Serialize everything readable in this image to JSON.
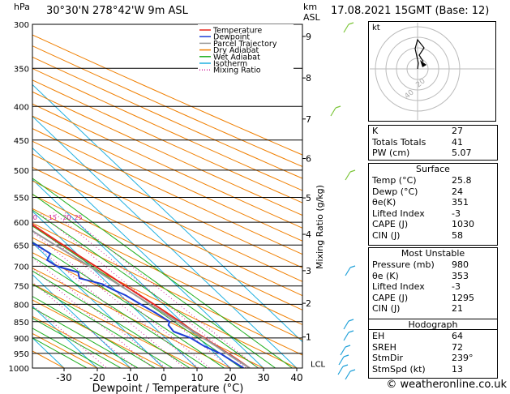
{
  "header": {
    "pressure_unit": "hPa",
    "location": "30°30'N  278°42'W  9m  ASL",
    "km_unit": "km",
    "asl_label": "ASL",
    "datetime": "17.08.2021  15GMT  (Base: 12)"
  },
  "legend": {
    "items": [
      {
        "label": "Temperature",
        "color": "#e8291e",
        "style": "solid"
      },
      {
        "label": "Dewpoint",
        "color": "#1f3fd6",
        "style": "solid"
      },
      {
        "label": "Parcel Trajectory",
        "color": "#999999",
        "style": "solid"
      },
      {
        "label": "Dry Adiabat",
        "color": "#f07f00",
        "style": "solid"
      },
      {
        "label": "Wet Adiabat",
        "color": "#20b020",
        "style": "solid"
      },
      {
        "label": "Isotherm",
        "color": "#20b0e0",
        "style": "solid"
      },
      {
        "label": "Mixing Ratio",
        "color": "#d0209a",
        "style": "dotted"
      }
    ]
  },
  "chart_data": {
    "type": "line",
    "subtype": "skew-t log-p",
    "xlabel": "Dewpoint / Temperature (°C)",
    "xticks": [
      -30,
      -20,
      -10,
      0,
      10,
      20,
      30,
      40
    ],
    "pressure_levels": [
      300,
      350,
      400,
      450,
      500,
      550,
      600,
      650,
      700,
      750,
      800,
      850,
      900,
      950,
      1000
    ],
    "ylabel_right": "Mixing Ratio (g/kg)",
    "height_km_ticks": [
      {
        "label": "9",
        "p": 313
      },
      {
        "label": "8",
        "p": 362
      },
      {
        "label": "7",
        "p": 418
      },
      {
        "label": "6",
        "p": 480
      },
      {
        "label": "5",
        "p": 551
      },
      {
        "label": "4",
        "p": 626
      },
      {
        "label": "3",
        "p": 711
      },
      {
        "label": "2",
        "p": 797
      },
      {
        "label": "1",
        "p": 897
      }
    ],
    "lcl_label": "LCL",
    "mixing_ratio_labels": [
      "1",
      "2",
      "3",
      "4",
      "6",
      "8",
      "10",
      "15",
      "20",
      "25"
    ],
    "series": [
      {
        "name": "Temperature",
        "color": "#e8291e",
        "points": [
          [
            1000,
            25.8
          ],
          [
            975,
            25.0
          ],
          [
            950,
            24.0
          ],
          [
            925,
            22.8
          ],
          [
            900,
            21.8
          ],
          [
            875,
            20.4
          ],
          [
            850,
            19.6
          ],
          [
            825,
            18.4
          ],
          [
            800,
            17.2
          ],
          [
            775,
            15.8
          ],
          [
            750,
            14.4
          ],
          [
            725,
            13.0
          ],
          [
            700,
            11.6
          ],
          [
            675,
            10.0
          ],
          [
            650,
            8.6
          ],
          [
            625,
            7.0
          ],
          [
            600,
            5.4
          ],
          [
            575,
            3.6
          ],
          [
            550,
            1.6
          ],
          [
            525,
            -0.6
          ],
          [
            500,
            -3.0
          ],
          [
            475,
            -5.6
          ],
          [
            450,
            -8.2
          ],
          [
            425,
            -11.2
          ],
          [
            400,
            -14.4
          ],
          [
            375,
            -17.8
          ],
          [
            350,
            -21.4
          ],
          [
            325,
            -25.6
          ],
          [
            300,
            -30.0
          ]
        ]
      },
      {
        "name": "Dewpoint",
        "color": "#1f3fd6",
        "points": [
          [
            1000,
            24.0
          ],
          [
            975,
            22.8
          ],
          [
            950,
            21.6
          ],
          [
            925,
            19.0
          ],
          [
            900,
            17.6
          ],
          [
            880,
            14.5
          ],
          [
            860,
            15.0
          ],
          [
            850,
            16.4
          ],
          [
            825,
            15.0
          ],
          [
            800,
            13.2
          ],
          [
            775,
            11.5
          ],
          [
            760,
            9.5
          ],
          [
            745,
            8.0
          ],
          [
            730,
            3.0
          ],
          [
            715,
            4.5
          ],
          [
            700,
            0.0
          ],
          [
            685,
            -1.0
          ],
          [
            670,
            2.0
          ],
          [
            650,
            0.6
          ],
          [
            625,
            -2.0
          ],
          [
            600,
            -4.0
          ],
          [
            575,
            -6.0
          ],
          [
            560,
            -9.0
          ],
          [
            545,
            -22.0
          ],
          [
            540,
            -12.0
          ],
          [
            530,
            -11.0
          ],
          [
            520,
            -16.0
          ],
          [
            510,
            -12.0
          ],
          [
            500,
            -16.0
          ],
          [
            485,
            -14.0
          ],
          [
            470,
            -18.0
          ],
          [
            455,
            -19.0
          ],
          [
            440,
            -18.0
          ],
          [
            420,
            -20.0
          ],
          [
            400,
            -30.0
          ],
          [
            385,
            -30.0
          ],
          [
            370,
            -40.0
          ],
          [
            360,
            -40.0
          ],
          [
            350,
            -38.0
          ],
          [
            340,
            -44.0
          ],
          [
            325,
            -44.0
          ],
          [
            310,
            -46.0
          ],
          [
            300,
            -50.0
          ]
        ]
      },
      {
        "name": "Parcel Trajectory",
        "color": "#999999",
        "points": [
          [
            1000,
            25.8
          ],
          [
            960,
            24.0
          ],
          [
            925,
            22.6
          ],
          [
            900,
            21.4
          ],
          [
            850,
            18.8
          ],
          [
            800,
            16.0
          ],
          [
            750,
            13.0
          ],
          [
            700,
            9.8
          ],
          [
            650,
            6.2
          ],
          [
            600,
            2.4
          ],
          [
            550,
            -2.0
          ],
          [
            500,
            -7.2
          ],
          [
            450,
            -13.0
          ],
          [
            400,
            -20.0
          ],
          [
            350,
            -28.0
          ],
          [
            300,
            -37.0
          ]
        ]
      }
    ]
  },
  "hodograph": {
    "label": "kt",
    "ring_labels": [
      "20",
      "40"
    ]
  },
  "indices": {
    "k_label": "K",
    "k_value": "27",
    "tt_label": "Totals Totals",
    "tt_value": "41",
    "pw_label": "PW (cm)",
    "pw_value": "5.07"
  },
  "surface": {
    "title": "Surface",
    "temp_label": "Temp (°C)",
    "temp_value": "25.8",
    "dewp_label": "Dewp (°C)",
    "dewp_value": "24",
    "theta_label": "θe(K)",
    "theta_value": "351",
    "li_label": "Lifted Index",
    "li_value": "-3",
    "cape_label": "CAPE (J)",
    "cape_value": "1030",
    "cin_label": "CIN (J)",
    "cin_value": "58"
  },
  "most_unstable": {
    "title": "Most Unstable",
    "pressure_label": "Pressure (mb)",
    "pressure_value": "980",
    "theta_label": "θe (K)",
    "theta_value": "353",
    "li_label": "Lifted Index",
    "li_value": "-3",
    "cape_label": "CAPE (J)",
    "cape_value": "1295",
    "cin_label": "CIN (J)",
    "cin_value": "21"
  },
  "hodograph_table": {
    "title": "Hodograph",
    "eh_label": "EH",
    "eh_value": "64",
    "sreh_label": "SREH",
    "sreh_value": "72",
    "stmdir_label": "StmDir",
    "stmdir_value": "239°",
    "stmspd_label": "StmSpd (kt)",
    "stmspd_value": "13"
  },
  "footer": {
    "copyright": "© weatheronline.co.uk"
  }
}
